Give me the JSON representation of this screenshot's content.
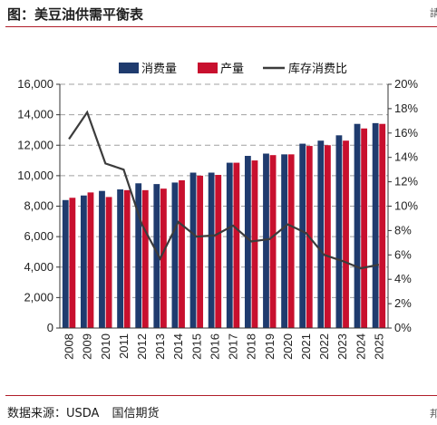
{
  "figure": {
    "title": "图：美豆油供需平衡表",
    "source_label": "数据来源：USDA",
    "source_org": "国信期货",
    "edge_glyph_top": "請",
    "edge_glyph_bottom": "邦"
  },
  "colors": {
    "consumption": "#1f3b6e",
    "production": "#c8102e",
    "ratio": "#3c3c3c",
    "accent_rule": "#b01e2a",
    "grid": "#a0a0a0"
  },
  "chart_data": {
    "type": "bar",
    "categories": [
      "2008",
      "2009",
      "2010",
      "2011",
      "2012",
      "2013",
      "2014",
      "2015",
      "2016",
      "2017",
      "2018",
      "2019",
      "2020",
      "2021",
      "2022",
      "2023",
      "2024",
      "2025"
    ],
    "series": [
      {
        "name": "消费量",
        "type": "bar",
        "axis": "left",
        "values": [
          8400,
          8700,
          9000,
          9100,
          9500,
          9450,
          9550,
          10200,
          10200,
          10850,
          11300,
          11450,
          11400,
          12100,
          12300,
          12650,
          13400,
          13450
        ]
      },
      {
        "name": "产量",
        "type": "bar",
        "axis": "left",
        "values": [
          8550,
          8900,
          8600,
          9050,
          9050,
          9150,
          9700,
          10000,
          10050,
          10850,
          11000,
          11350,
          11400,
          11950,
          12000,
          12300,
          13100,
          13400
        ]
      },
      {
        "name": "库存消费比",
        "type": "line",
        "axis": "right",
        "values": [
          15.5,
          17.7,
          13.5,
          13.0,
          8.5,
          5.7,
          8.7,
          7.5,
          7.6,
          8.4,
          7.1,
          7.3,
          8.5,
          7.8,
          6.0,
          5.5,
          4.9,
          5.2
        ]
      }
    ],
    "y_left": {
      "min": 0,
      "max": 16000,
      "ticks": [
        "0",
        "2,000",
        "4,000",
        "6,000",
        "8,000",
        "10,000",
        "12,000",
        "14,000",
        "16,000"
      ]
    },
    "y_right": {
      "min": 0,
      "max": 20,
      "ticks": [
        "0%",
        "2%",
        "4%",
        "6%",
        "8%",
        "10%",
        "12%",
        "14%",
        "16%",
        "18%",
        "20%"
      ]
    },
    "legend": {
      "placement": "top-center",
      "labels": [
        "消费量",
        "产量",
        "库存消费比"
      ]
    },
    "grid": "horizontal dashed"
  }
}
